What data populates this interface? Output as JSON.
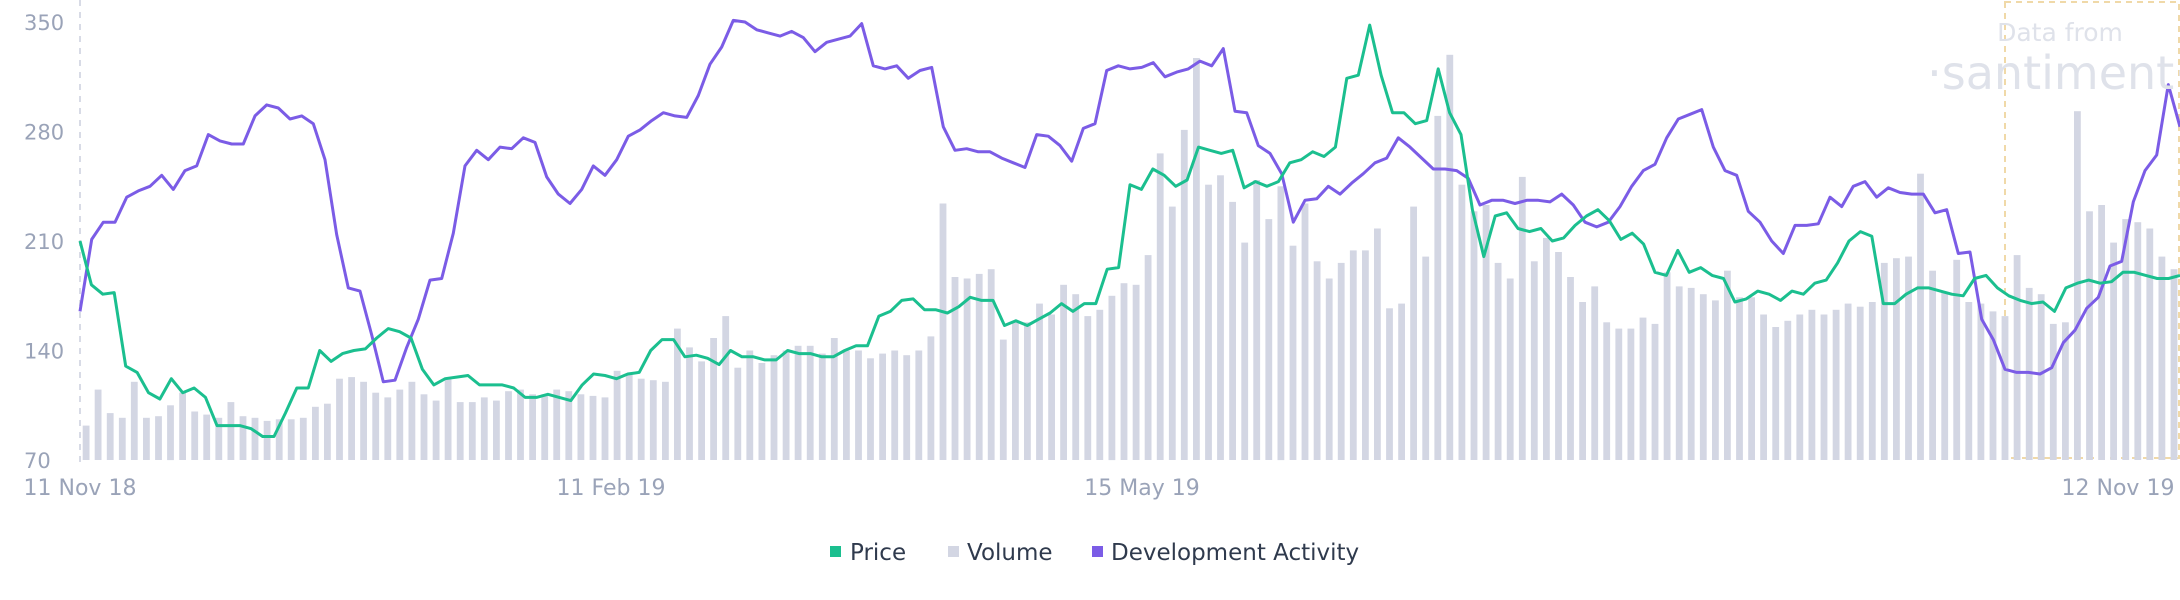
{
  "watermark": {
    "line1": "Data from",
    "line2": "·santiment·"
  },
  "colors": {
    "price": "#1bbf8f",
    "volume": "#d3d6e3",
    "dev": "#7b5ce6",
    "axis_text": "#9aa3b8",
    "highlight": "#f0d9a8"
  },
  "chart_data": {
    "type": "line",
    "x_ticks": [
      "11 Nov 18",
      "11 Feb 19",
      "15 May 19",
      "12 Nov 19"
    ],
    "y_ticks": [
      70,
      140,
      210,
      280,
      350
    ],
    "ylim": [
      70,
      350
    ],
    "legend": [
      "Price",
      "Volume",
      "Development Activity"
    ],
    "legend_position": "bottom-center",
    "grid": false,
    "series": [
      {
        "name": "Price",
        "kind": "line",
        "values": [
          210,
          182,
          176,
          177,
          130,
          126,
          113,
          109,
          122,
          113,
          116,
          110,
          92,
          92,
          92,
          90,
          85,
          85,
          100,
          116,
          116,
          140,
          133,
          138,
          140,
          141,
          148,
          154,
          152,
          148,
          128,
          118,
          122,
          123,
          124,
          118,
          118,
          118,
          116,
          110,
          110,
          112,
          110,
          108,
          118,
          125,
          124,
          122,
          125,
          126,
          140,
          147,
          147,
          136,
          137,
          135,
          131,
          140,
          136,
          136,
          134,
          134,
          140,
          138,
          138,
          136,
          136,
          140,
          143,
          143,
          162,
          165,
          172,
          173,
          166,
          166,
          164,
          168,
          174,
          172,
          172,
          156,
          159,
          156,
          160,
          164,
          170,
          165,
          170,
          170,
          192,
          193,
          246,
          243,
          256,
          252,
          245,
          249,
          270,
          268,
          266,
          268,
          244,
          248,
          245,
          248,
          260,
          262,
          267,
          264,
          270,
          314,
          316,
          348,
          316,
          292,
          292,
          285,
          287,
          320,
          292,
          278,
          230,
          200,
          226,
          228,
          218,
          216,
          218,
          210,
          212,
          220,
          226,
          230,
          223,
          211,
          215,
          208,
          190,
          188,
          204,
          190,
          193,
          188,
          186,
          171,
          173,
          178,
          176,
          172,
          178,
          176,
          183,
          185,
          196,
          210,
          216,
          213,
          170,
          170,
          176,
          180,
          180,
          178,
          176,
          175,
          186,
          188,
          180,
          175,
          172,
          170,
          171,
          165,
          180,
          183,
          185,
          183,
          184,
          190,
          190,
          188,
          186,
          186,
          188
        ]
      },
      {
        "name": "Volume",
        "kind": "bar",
        "values": [
          92,
          115,
          100,
          97,
          120,
          97,
          98,
          105,
          113,
          101,
          99,
          97,
          107,
          98,
          97,
          95,
          96,
          96,
          97,
          104,
          106,
          122,
          123,
          120,
          113,
          110,
          115,
          120,
          112,
          108,
          122,
          107,
          107,
          110,
          108,
          114,
          115,
          112,
          112,
          115,
          114,
          112,
          111,
          110,
          127,
          125,
          122,
          121,
          120,
          154,
          142,
          133,
          148,
          162,
          129,
          140,
          132,
          137,
          140,
          143,
          143,
          138,
          148,
          140,
          140,
          135,
          138,
          140,
          137,
          140,
          149,
          234,
          187,
          186,
          189,
          192,
          147,
          158,
          158,
          170,
          163,
          182,
          176,
          162,
          166,
          175,
          183,
          182,
          201,
          266,
          232,
          281,
          327,
          246,
          252,
          235,
          209,
          249,
          224,
          245,
          207,
          234,
          197,
          186,
          196,
          204,
          204,
          218,
          167,
          170,
          232,
          200,
          290,
          329,
          246,
          229,
          233,
          196,
          186,
          251,
          197,
          212,
          203,
          187,
          171,
          181,
          158,
          154,
          154,
          161,
          157,
          190,
          181,
          180,
          176,
          172,
          191,
          174,
          174,
          163,
          155,
          159,
          163,
          166,
          163,
          166,
          170,
          168,
          171,
          196,
          199,
          200,
          253,
          191,
          177,
          198,
          171,
          170,
          165,
          162,
          201,
          180,
          176,
          157,
          158,
          293,
          229,
          233,
          209,
          224,
          222,
          218,
          200,
          192
        ]
      },
      {
        "name": "Development Activity",
        "kind": "line",
        "values": [
          165,
          211,
          222,
          222,
          238,
          242,
          245,
          252,
          243,
          255,
          258,
          278,
          274,
          272,
          272,
          290,
          297,
          295,
          288,
          290,
          285,
          262,
          214,
          180,
          178,
          150,
          120,
          121,
          142,
          160,
          185,
          186,
          215,
          258,
          268,
          262,
          270,
          269,
          276,
          273,
          251,
          240,
          234,
          243,
          258,
          252,
          262,
          277,
          281,
          287,
          292,
          290,
          289,
          303,
          323,
          334,
          351,
          350,
          345,
          343,
          341,
          344,
          340,
          331,
          337,
          339,
          341,
          349,
          322,
          320,
          322,
          314,
          319,
          321,
          283,
          268,
          269,
          267,
          267,
          263,
          260,
          257,
          278,
          277,
          271,
          261,
          282,
          285,
          319,
          322,
          320,
          321,
          324,
          315,
          318,
          320,
          325,
          322,
          333,
          293,
          292,
          271,
          266,
          253,
          222,
          236,
          237,
          245,
          240,
          247,
          253,
          260,
          263,
          276,
          270,
          263,
          256,
          256,
          255,
          250,
          233,
          236,
          236,
          234,
          236,
          236,
          235,
          240,
          233,
          222,
          219,
          222,
          232,
          245,
          255,
          259,
          276,
          288,
          291,
          294,
          270,
          255,
          252,
          229,
          222,
          210,
          202,
          220,
          220,
          221,
          238,
          232,
          245,
          248,
          238,
          244,
          241,
          240,
          240,
          228,
          230,
          202,
          203,
          160,
          147,
          128,
          126,
          126,
          125,
          129,
          145,
          153,
          167,
          174,
          194,
          197,
          235,
          255,
          265,
          310,
          283
        ]
      }
    ]
  }
}
